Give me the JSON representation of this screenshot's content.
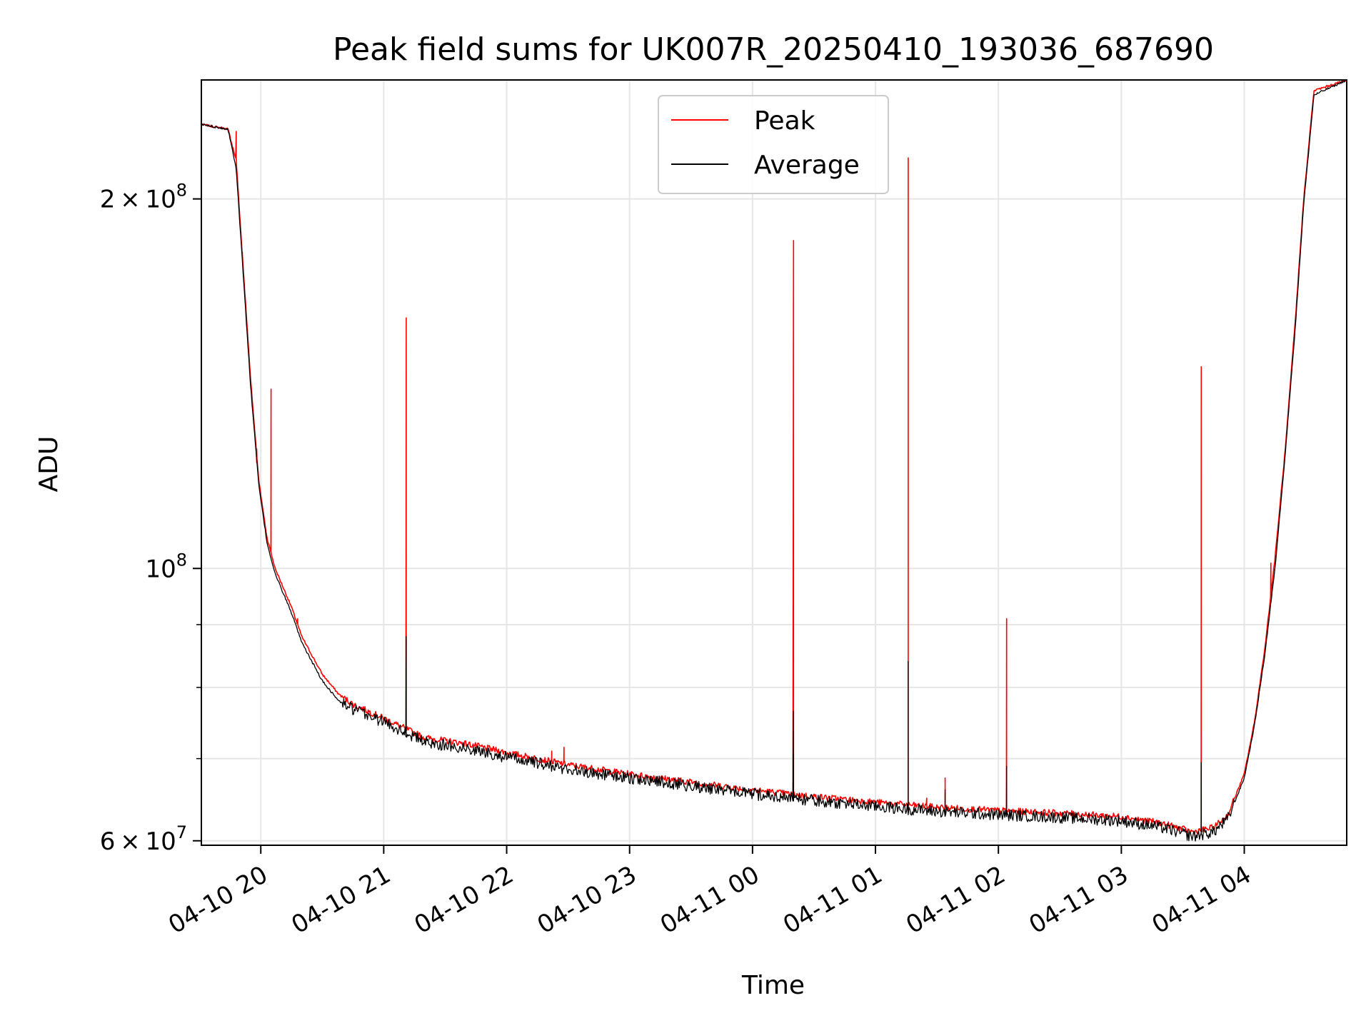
{
  "chart_data": {
    "type": "line",
    "title": "Peak field sums for UK007R_20250410_193036_687690",
    "xlabel": "Time",
    "ylabel": "ADU",
    "y_scale": "log",
    "xlim": [
      "2025-04-10 19:31",
      "2025-04-11 04:50"
    ],
    "ylim": [
      59500000,
      250000000
    ],
    "x_ticks": [
      "2025-04-10 20:00",
      "2025-04-10 21:00",
      "2025-04-10 22:00",
      "2025-04-10 23:00",
      "2025-04-11 00:00",
      "2025-04-11 01:00",
      "2025-04-11 02:00",
      "2025-04-11 03:00",
      "2025-04-11 04:00"
    ],
    "x_tick_labels": [
      "04-10 20",
      "04-10 21",
      "04-10 22",
      "04-10 23",
      "04-11 00",
      "04-11 01",
      "04-11 02",
      "04-11 03",
      "04-11 04"
    ],
    "y_major_ticks": [
      60000000,
      100000000,
      200000000
    ],
    "y_major_labels": [
      {
        "base": "6",
        "exp": "7"
      },
      {
        "base": "",
        "exp": "8"
      },
      {
        "base": "2",
        "exp": "8"
      }
    ],
    "y_minor_ticks": [
      70000000,
      80000000,
      90000000
    ],
    "grid": true,
    "legend_position": "top-center",
    "series": [
      {
        "name": "Peak",
        "color": "#ff0000",
        "points": [
          [
            "2025-04-10 19:31",
            230000000
          ],
          [
            "2025-04-10 19:44",
            228000000
          ],
          [
            "2025-04-10 19:48",
            215000000
          ],
          [
            "2025-04-10 19:51",
            180000000
          ],
          [
            "2025-04-10 19:55",
            143000000
          ],
          [
            "2025-04-10 19:59",
            118000000
          ],
          [
            "2025-04-10 20:03",
            106000000
          ],
          [
            "2025-04-10 20:07",
            100000000
          ],
          [
            "2025-04-10 20:15",
            93000000
          ],
          [
            "2025-04-10 20:20",
            88000000
          ],
          [
            "2025-04-10 20:30",
            82000000
          ],
          [
            "2025-04-10 20:38",
            79000000
          ],
          [
            "2025-04-10 20:45",
            77500000
          ],
          [
            "2025-04-10 21:00",
            75500000
          ],
          [
            "2025-04-10 21:11",
            74000000
          ],
          [
            "2025-04-10 21:20",
            72800000
          ],
          [
            "2025-04-10 21:40",
            72000000
          ],
          [
            "2025-04-10 22:00",
            70800000
          ],
          [
            "2025-04-10 22:30",
            69200000
          ],
          [
            "2025-04-10 23:00",
            68000000
          ],
          [
            "2025-04-10 23:30",
            67000000
          ],
          [
            "2025-04-11 00:00",
            66000000
          ],
          [
            "2025-04-11 00:30",
            65200000
          ],
          [
            "2025-04-11 01:00",
            64500000
          ],
          [
            "2025-04-11 01:30",
            63900000
          ],
          [
            "2025-04-11 02:00",
            63500000
          ],
          [
            "2025-04-11 02:30",
            63200000
          ],
          [
            "2025-04-11 03:00",
            62800000
          ],
          [
            "2025-04-11 03:20",
            62000000
          ],
          [
            "2025-04-11 03:35",
            61000000
          ],
          [
            "2025-04-11 03:45",
            61500000
          ],
          [
            "2025-04-11 03:52",
            63000000
          ],
          [
            "2025-04-11 04:00",
            68000000
          ],
          [
            "2025-04-11 04:05",
            75000000
          ],
          [
            "2025-04-11 04:10",
            86000000
          ],
          [
            "2025-04-11 04:15",
            102000000
          ],
          [
            "2025-04-11 04:20",
            125000000
          ],
          [
            "2025-04-11 04:25",
            160000000
          ],
          [
            "2025-04-11 04:29",
            200000000
          ],
          [
            "2025-04-11 04:34",
            245000000
          ],
          [
            "2025-04-11 04:50",
            250000000
          ]
        ],
        "spikes": [
          [
            "2025-04-10 19:48",
            227000000
          ],
          [
            "2025-04-10 19:51",
            181000000
          ],
          [
            "2025-04-10 19:58",
            122000000
          ],
          [
            "2025-04-10 20:05",
            140000000
          ],
          [
            "2025-04-10 20:18",
            91000000
          ],
          [
            "2025-04-10 21:11",
            160000000
          ],
          [
            "2025-04-10 22:22",
            71000000
          ],
          [
            "2025-04-10 22:28",
            71500000
          ],
          [
            "2025-04-11 00:20",
            185000000
          ],
          [
            "2025-04-11 01:16",
            216000000
          ],
          [
            "2025-04-11 01:25",
            65000000
          ],
          [
            "2025-04-11 01:34",
            67500000
          ],
          [
            "2025-04-11 02:04",
            91000000
          ],
          [
            "2025-04-11 03:39",
            146000000
          ],
          [
            "2025-04-11 04:13",
            101000000
          ]
        ]
      },
      {
        "name": "Average",
        "color": "#000000",
        "points": [
          [
            "2025-04-10 19:31",
            230000000
          ],
          [
            "2025-04-10 19:44",
            228000000
          ],
          [
            "2025-04-10 19:48",
            212000000
          ],
          [
            "2025-04-10 19:51",
            178000000
          ],
          [
            "2025-04-10 19:55",
            141000000
          ],
          [
            "2025-04-10 19:59",
            117000000
          ],
          [
            "2025-04-10 20:03",
            105000000
          ],
          [
            "2025-04-10 20:07",
            99000000
          ],
          [
            "2025-04-10 20:15",
            92000000
          ],
          [
            "2025-04-10 20:20",
            87000000
          ],
          [
            "2025-04-10 20:30",
            81000000
          ],
          [
            "2025-04-10 20:38",
            78000000
          ],
          [
            "2025-04-10 20:45",
            76800000
          ],
          [
            "2025-04-10 21:00",
            75000000
          ],
          [
            "2025-04-10 21:11",
            73500000
          ],
          [
            "2025-04-10 21:20",
            72200000
          ],
          [
            "2025-04-10 21:40",
            71400000
          ],
          [
            "2025-04-10 22:00",
            70200000
          ],
          [
            "2025-04-10 22:30",
            68600000
          ],
          [
            "2025-04-10 23:00",
            67500000
          ],
          [
            "2025-04-10 23:30",
            66500000
          ],
          [
            "2025-04-11 00:00",
            65500000
          ],
          [
            "2025-04-11 00:30",
            64700000
          ],
          [
            "2025-04-11 01:00",
            64000000
          ],
          [
            "2025-04-11 01:30",
            63400000
          ],
          [
            "2025-04-11 02:00",
            63000000
          ],
          [
            "2025-04-11 02:30",
            62700000
          ],
          [
            "2025-04-11 03:00",
            62300000
          ],
          [
            "2025-04-11 03:20",
            61500000
          ],
          [
            "2025-04-11 03:35",
            60500000
          ],
          [
            "2025-04-11 03:45",
            61000000
          ],
          [
            "2025-04-11 03:52",
            62500000
          ],
          [
            "2025-04-11 04:00",
            67500000
          ],
          [
            "2025-04-11 04:05",
            74500000
          ],
          [
            "2025-04-11 04:10",
            85000000
          ],
          [
            "2025-04-11 04:15",
            100000000
          ],
          [
            "2025-04-11 04:20",
            124000000
          ],
          [
            "2025-04-11 04:25",
            158000000
          ],
          [
            "2025-04-11 04:29",
            198000000
          ],
          [
            "2025-04-11 04:34",
            243000000
          ],
          [
            "2025-04-11 04:50",
            250000000
          ]
        ],
        "spikes": [
          [
            "2025-04-10 21:11",
            88000000
          ],
          [
            "2025-04-11 00:20",
            76500000
          ],
          [
            "2025-04-11 01:16",
            84000000
          ],
          [
            "2025-04-11 01:34",
            66000000
          ],
          [
            "2025-04-11 02:04",
            69000000
          ],
          [
            "2025-04-11 03:39",
            69500000
          ]
        ]
      }
    ]
  }
}
